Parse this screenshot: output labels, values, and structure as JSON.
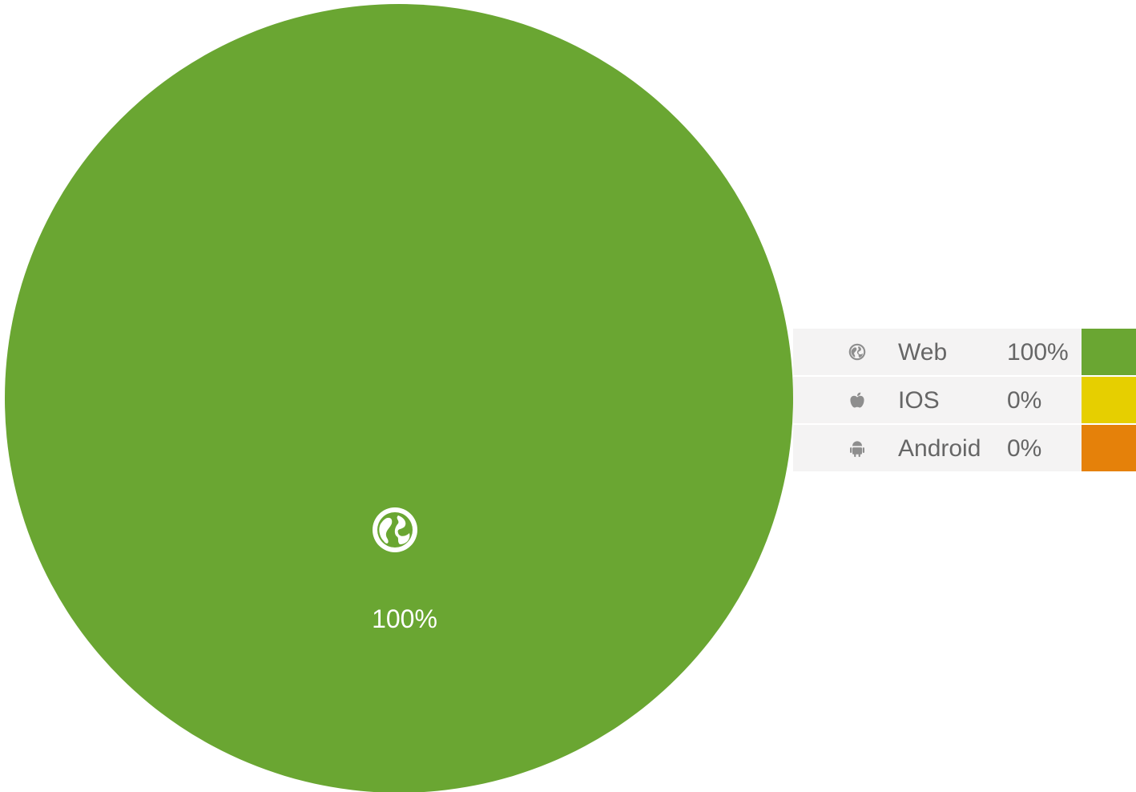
{
  "chart_data": {
    "type": "pie",
    "categories": [
      "Web",
      "IOS",
      "Android"
    ],
    "values": [
      100,
      0,
      0
    ],
    "value_labels": [
      "100%",
      "0%",
      "0%"
    ],
    "colors": [
      "#6aa632",
      "#e6cf00",
      "#e5810a"
    ],
    "icons": [
      "globe-icon",
      "apple-icon",
      "android-icon"
    ],
    "slice_label": "100%",
    "legend_position": "right"
  }
}
